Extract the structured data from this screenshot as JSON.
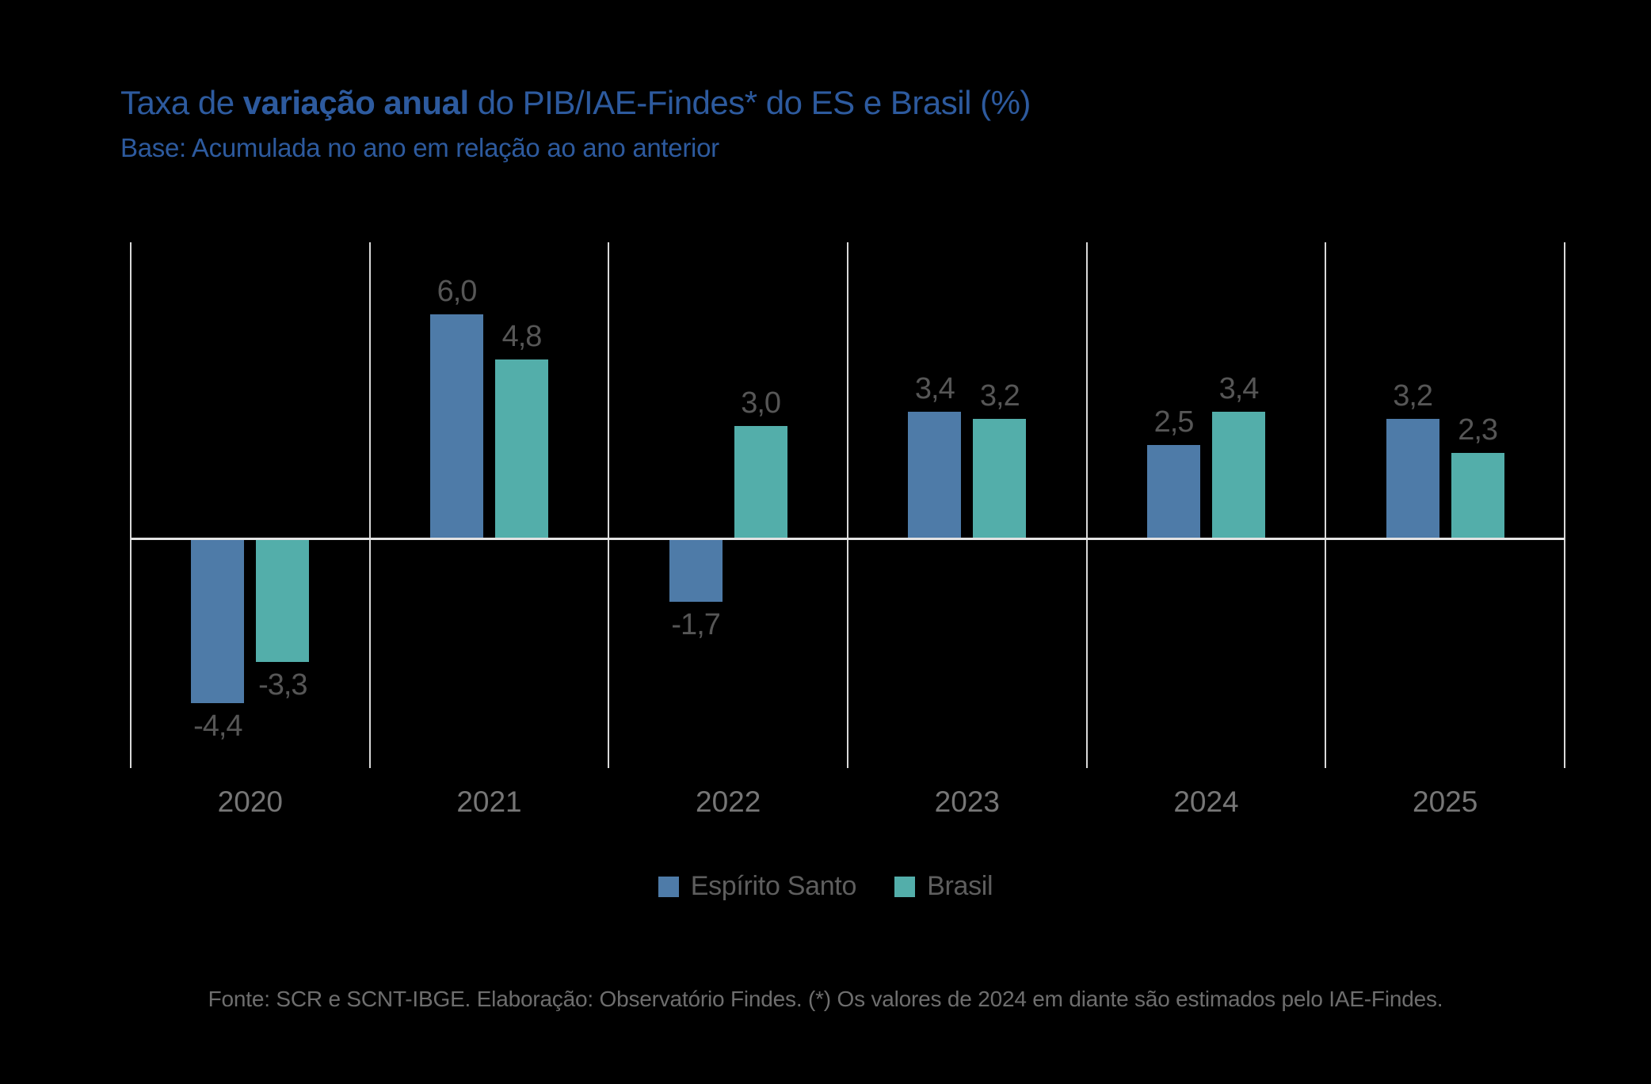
{
  "header": {
    "title_prefix": "Taxa de ",
    "title_bold": "variação anual",
    "title_suffix": " do PIB/IAE-Findes* do ES e Brasil (%)",
    "subtitle": "Base: Acumulada no ano em relação ao ano anterior"
  },
  "legend": {
    "items": [
      {
        "label": "Espírito Santo",
        "color": "#4e7ba8"
      },
      {
        "label": "Brasil",
        "color": "#53aeaa"
      }
    ]
  },
  "footer": {
    "source_note": "Fonte: SCR e SCNT-IBGE. Elaboração: Observatório Findes. (*) Os valores de 2024 em diante são estimados pelo IAE-Findes."
  },
  "colors": {
    "background": "#000000",
    "title_blue": "#2d5a9e",
    "espirito_santo_bar": "#4e7ba8",
    "brasil_bar": "#53aeaa",
    "gridline": "#d9d9d9",
    "zero_line": "#e3e3e3",
    "value_label": "#565656",
    "year_label": "#767676",
    "legend_text": "#5e5e5e",
    "footer_text": "#6e6e6e"
  },
  "chart_data": {
    "type": "bar",
    "title": "Taxa de variação anual do PIB/IAE-Findes* do ES e Brasil (%)",
    "subtitle": "Base: Acumulada no ano em relação ao ano anterior",
    "unit": "%",
    "categories": [
      "2020",
      "2021",
      "2022",
      "2023",
      "2024",
      "2025"
    ],
    "series": [
      {
        "name": "Espírito Santo",
        "color": "#4e7ba8",
        "values": [
          -4.4,
          6.0,
          -1.7,
          3.4,
          2.5,
          3.2
        ]
      },
      {
        "name": "Brasil",
        "color": "#53aeaa",
        "values": [
          -3.3,
          4.8,
          3.0,
          3.2,
          3.4,
          2.3
        ]
      }
    ],
    "data_labels": [
      "-4,4",
      "6,0",
      "-1,7",
      "3,4",
      "2,5",
      "3,2",
      "-3,3",
      "4,8",
      "3,0",
      "3,2",
      "3,4",
      "2,3"
    ],
    "value_format": "one decimal, comma as decimal separator",
    "ylim": [
      -6.2,
      7.9
    ],
    "grid": "vertical category separators only",
    "zero_line": true,
    "legend_position": "bottom-center",
    "data_label_position": "outside end of bar"
  }
}
